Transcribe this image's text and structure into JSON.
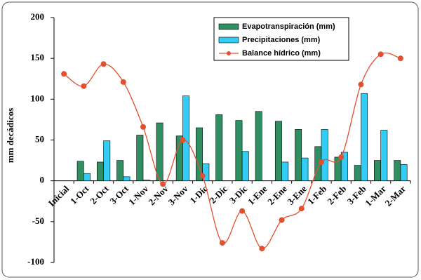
{
  "chart_data": {
    "type": "bar-line",
    "y_label": "mm decádicos",
    "categories": [
      "Inicial",
      "1-Oct",
      "2-Oct",
      "3-Oct",
      "1-Nov",
      "2-Nov",
      "3-Nov",
      "1-Dic",
      "2-Dic",
      "3-Dic",
      "1-Ene",
      "2-Ene",
      "3-Ene",
      "1-Feb",
      "2-Feb",
      "3-Feb",
      "1-Mar",
      "2-Mar"
    ],
    "series": [
      {
        "name": "Evapotranspiración (mm)",
        "type": "bar",
        "color": "#2f8f62",
        "values": [
          null,
          24,
          23,
          25,
          56,
          71,
          55,
          65,
          81,
          74,
          85,
          73,
          63,
          42,
          29,
          19,
          25,
          25
        ]
      },
      {
        "name": "Precipitaciones (mm)",
        "type": "bar",
        "color": "#33ccf5",
        "values": [
          null,
          9,
          49,
          5,
          1,
          0,
          104,
          21,
          0,
          36,
          0,
          23,
          28,
          63,
          35,
          107,
          62,
          20
        ]
      },
      {
        "name": "Balance hídrico (mm)",
        "type": "line",
        "color": "#e2502f",
        "values": [
          131,
          116,
          143,
          121,
          66,
          -4,
          50,
          6,
          -76,
          -37,
          -83,
          -48,
          -34,
          23,
          29,
          118,
          155,
          150
        ]
      }
    ],
    "ylim": [
      -100,
      200
    ],
    "yticks": [
      200,
      150,
      100,
      50,
      0,
      -50,
      -100
    ],
    "grid": false,
    "legend": "top-right"
  }
}
